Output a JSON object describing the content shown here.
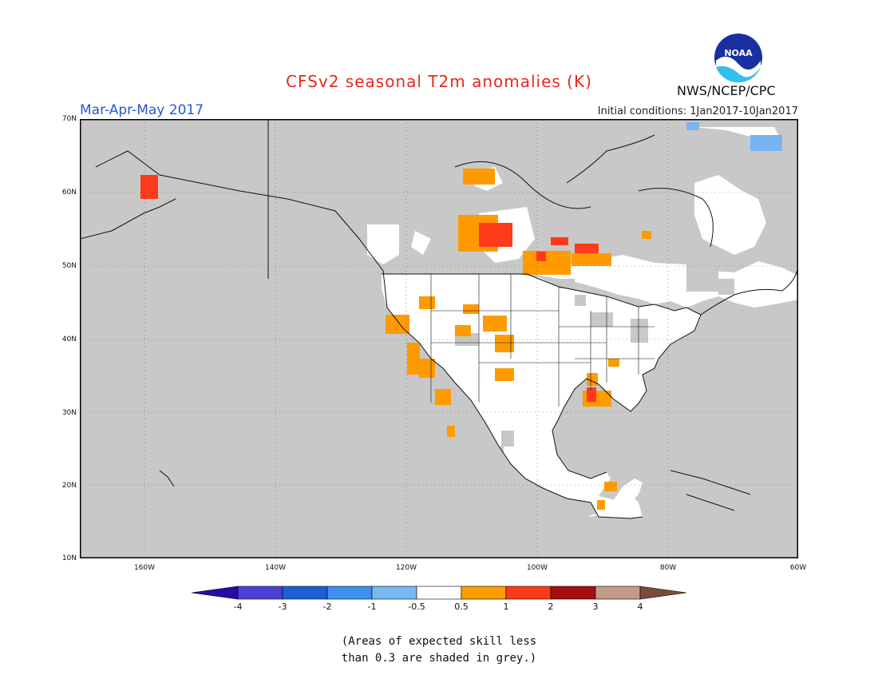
{
  "header": {
    "title": "CFSv2 seasonal T2m anomalies (K)",
    "period": "Mar-Apr-May 2017",
    "initial_conditions": "Initial conditions: 1Jan2017-10Jan2017",
    "agency": "NWS/NCEP/CPC",
    "logo_text": "NOAA"
  },
  "axes": {
    "lat_labels": [
      "70N",
      "60N",
      "50N",
      "40N",
      "30N",
      "20N",
      "10N"
    ],
    "lon_labels": [
      "160W",
      "140W",
      "120W",
      "100W",
      "80W",
      "60W"
    ]
  },
  "colorbar": {
    "ticks": [
      "-4",
      "-3",
      "-2",
      "-1",
      "-0.5",
      "0.5",
      "1",
      "2",
      "3",
      "4"
    ],
    "colors": [
      "#2c0aa8",
      "#4d3fd4",
      "#1e5fd6",
      "#3d8ff0",
      "#79b8f5",
      "#ffffff",
      "#ff9a00",
      "#ff3a1a",
      "#a50f0f",
      "#c49a8a",
      "#7a4b3a"
    ]
  },
  "colors": {
    "land_white": "#ffffff",
    "no_skill_grey": "#c8c8c8",
    "anomaly_0_5_1": "#ff9a00",
    "anomaly_1_2": "#ff3a1a",
    "anomaly_neg": "#7ab4f0"
  },
  "note": {
    "line1": "(Areas of expected skill less",
    "line2": "than 0.3 are shaded in grey.)"
  }
}
